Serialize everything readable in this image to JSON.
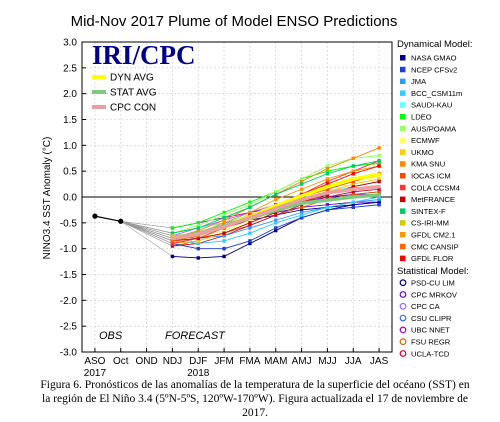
{
  "chart_data": {
    "type": "line",
    "title": "Mid-Nov 2017 Plume of Model ENSO Predictions",
    "ylabel": "NINO3.4 SST Anomaly (°C)",
    "xlabel": "",
    "ylim": [
      -3.0,
      3.0
    ],
    "yticks": [
      3.0,
      2.5,
      2.0,
      1.5,
      1.0,
      0.5,
      0.0,
      -0.5,
      -1.0,
      -1.5,
      -2.0,
      -2.5,
      -3.0
    ],
    "ytick_labels": [
      "3.0",
      "2.5",
      "2.0",
      "1.5",
      "1.0",
      "0.5",
      "0.0",
      "-0.5",
      "-1.0",
      "-1.5",
      "-2.0",
      "-2.5",
      "-3.0"
    ],
    "categories": [
      "ASO",
      "Oct",
      "OND",
      "NDJ",
      "DJF",
      "JFM",
      "FMA",
      "MAM",
      "AMJ",
      "MJJ",
      "JJA",
      "JAS"
    ],
    "year_labels": [
      {
        "category": "ASO",
        "text": "2017"
      },
      {
        "category": "DJF",
        "text": "2018"
      }
    ],
    "grid": true,
    "zero_line": true,
    "annotations": {
      "logo": "IRI/CPC",
      "obs": "OBS",
      "forecast": "FORECAST"
    },
    "observed": {
      "name": "OBS",
      "color": "#000000",
      "values": [
        -0.37,
        -0.47
      ]
    },
    "avg_legend": [
      {
        "name": "DYN AVG",
        "color": "#ffff00"
      },
      {
        "name": "STAT AVG",
        "color": "#7fc97f"
      },
      {
        "name": "CPC CON",
        "color": "#e8a0a0"
      }
    ],
    "legend_dynamical_title": "Dynamical Model:",
    "legend_statistical_title": "Statistical Model:",
    "dynamical_series": [
      {
        "name": "NASA GMAO",
        "color": "#00008b",
        "values": [
          -1.15,
          -1.18,
          -1.15,
          -0.9,
          -0.65,
          -0.4,
          -0.25,
          -0.15,
          -0.1
        ]
      },
      {
        "name": "NCEP CFSv2",
        "color": "#1f3fd0",
        "values": [
          -0.9,
          -1.0,
          -1.0,
          -0.85,
          -0.6,
          -0.4,
          -0.25,
          -0.2,
          -0.15
        ]
      },
      {
        "name": "JMA",
        "color": "#3399ff",
        "values": [
          -0.75,
          -0.8,
          -0.75,
          -0.6,
          -0.45,
          -0.3,
          -0.2,
          -0.1,
          -0.05
        ]
      },
      {
        "name": "BCC_CSM11m",
        "color": "#33ccff",
        "values": [
          -0.85,
          -0.9,
          -0.85,
          -0.7,
          -0.5,
          -0.35,
          -0.2,
          -0.1,
          0.0
        ]
      },
      {
        "name": "SAUDI-KAU",
        "color": "#66ffff",
        "values": [
          -0.7,
          -0.6,
          -0.5,
          -0.35,
          -0.2,
          -0.05,
          0.1,
          0.2,
          0.3
        ]
      },
      {
        "name": "LDEO",
        "color": "#00ff00",
        "values": [
          -0.6,
          -0.5,
          -0.3,
          -0.1,
          0.1,
          0.35,
          0.5,
          0.6,
          0.65
        ]
      },
      {
        "name": "AUS/POAMA",
        "color": "#99ff66",
        "values": [
          -0.7,
          -0.55,
          -0.35,
          -0.15,
          0.1,
          0.35,
          0.6,
          0.75,
          0.8
        ]
      },
      {
        "name": "ECMWF",
        "color": "#ffff66",
        "values": [
          -0.85,
          -0.8,
          -0.65,
          -0.45,
          -0.25,
          -0.05,
          0.15,
          0.3,
          0.4
        ]
      },
      {
        "name": "UKMO",
        "color": "#ffcc00",
        "values": [
          -0.9,
          -0.85,
          -0.7,
          -0.5,
          -0.3,
          -0.1,
          0.1,
          0.25,
          0.35
        ]
      },
      {
        "name": "KMA SNU",
        "color": "#ff8800",
        "values": [
          -0.8,
          -0.65,
          -0.45,
          -0.2,
          0.05,
          0.3,
          0.55,
          0.75,
          0.95
        ]
      },
      {
        "name": "IOCAS ICM",
        "color": "#ff4400",
        "values": [
          -0.8,
          -0.75,
          -0.6,
          -0.4,
          -0.2,
          0.0,
          0.15,
          0.3,
          0.45
        ]
      },
      {
        "name": "COLA CCSM4",
        "color": "#ff3333",
        "values": [
          -0.9,
          -0.8,
          -0.6,
          -0.4,
          -0.15,
          0.05,
          0.3,
          0.5,
          0.7
        ]
      },
      {
        "name": "MetFRANCE",
        "color": "#cc0000",
        "values": [
          -0.85,
          -0.8,
          -0.7,
          -0.5,
          -0.3,
          -0.1,
          0.05,
          0.2,
          0.3
        ]
      },
      {
        "name": "SINTEX-F",
        "color": "#00cc66",
        "values": [
          -0.7,
          -0.6,
          -0.4,
          -0.2,
          0.05,
          0.25,
          0.45,
          0.6,
          0.7
        ]
      },
      {
        "name": "CS-IRI-MM",
        "color": "#cccc00",
        "values": [
          -0.75,
          -0.7,
          -0.55,
          -0.35,
          -0.15,
          0.05,
          0.2,
          0.35,
          0.45
        ]
      },
      {
        "name": "GFDL CM2.1",
        "color": "#ff9900",
        "values": [
          -0.8,
          -0.7,
          -0.5,
          -0.3,
          -0.05,
          0.15,
          0.35,
          0.5,
          0.6
        ]
      },
      {
        "name": "CMC CANSIP",
        "color": "#ff6600",
        "values": [
          -0.85,
          -0.75,
          -0.6,
          -0.4,
          -0.2,
          0.0,
          0.2,
          0.35,
          0.45
        ]
      },
      {
        "name": "GFDL FLOR",
        "color": "#ff0000",
        "values": [
          -0.8,
          -0.7,
          -0.55,
          -0.35,
          -0.15,
          0.05,
          0.25,
          0.45,
          0.6
        ]
      }
    ],
    "statistical_series": [
      {
        "name": "PSD-CU LIM",
        "color": "#000080",
        "values": [
          -0.85,
          -0.75,
          -0.6,
          -0.45,
          -0.35,
          -0.25,
          -0.2,
          -0.15,
          -0.1
        ]
      },
      {
        "name": "CPC MRKOV",
        "color": "#6600cc",
        "values": [
          -0.7,
          -0.6,
          -0.5,
          -0.4,
          -0.3,
          -0.2,
          -0.15,
          -0.1,
          -0.1
        ]
      },
      {
        "name": "CPC CA",
        "color": "#9966ff",
        "values": [
          -0.75,
          -0.6,
          -0.45,
          -0.3,
          -0.15,
          -0.05,
          0.0,
          0.05,
          0.05
        ]
      },
      {
        "name": "CSU CLIPR",
        "color": "#3366ff",
        "values": [
          -0.8,
          -0.7,
          -0.55,
          -0.4,
          -0.25,
          -0.1,
          0.0,
          0.05,
          0.1
        ]
      },
      {
        "name": "UBC NNET",
        "color": "#9900cc",
        "values": [
          -0.6,
          -0.5,
          -0.4,
          -0.3,
          -0.2,
          -0.1,
          0.0,
          0.05,
          0.05
        ]
      },
      {
        "name": "FSU REGR",
        "color": "#cc6600",
        "values": [
          -0.95,
          -0.85,
          -0.7,
          -0.55,
          -0.35,
          -0.2,
          -0.05,
          0.05,
          0.1
        ]
      },
      {
        "name": "UCLA-TCD",
        "color": "#cc0033",
        "values": [
          -0.95,
          -0.9,
          -0.75,
          -0.55,
          -0.35,
          -0.15,
          0.0,
          0.1,
          0.15
        ]
      }
    ],
    "averages": [
      {
        "name": "DYN AVG",
        "color": "#ffff00",
        "values": [
          -0.8,
          -0.72,
          -0.56,
          -0.38,
          -0.17,
          0.02,
          0.2,
          0.35,
          0.44
        ]
      },
      {
        "name": "STAT AVG",
        "color": "#7fc97f",
        "values": [
          -0.8,
          -0.7,
          -0.56,
          -0.41,
          -0.26,
          -0.12,
          -0.06,
          0.0,
          0.04
        ]
      },
      {
        "name": "CPC CON",
        "color": "#e8a0a0",
        "values": [
          -0.8,
          -0.72,
          -0.58,
          -0.4,
          -0.22,
          -0.05,
          0.08,
          0.15,
          0.2
        ]
      }
    ]
  },
  "caption": {
    "text": "Figura 6. Pronósticos de las anomalías de la temperatura de la superficie del océano (SST) en la región de El Niño 3.4 (5ºN-5ºS, 120ºW-170ºW). Figura actualizada el 17 de noviembre de 2017."
  }
}
